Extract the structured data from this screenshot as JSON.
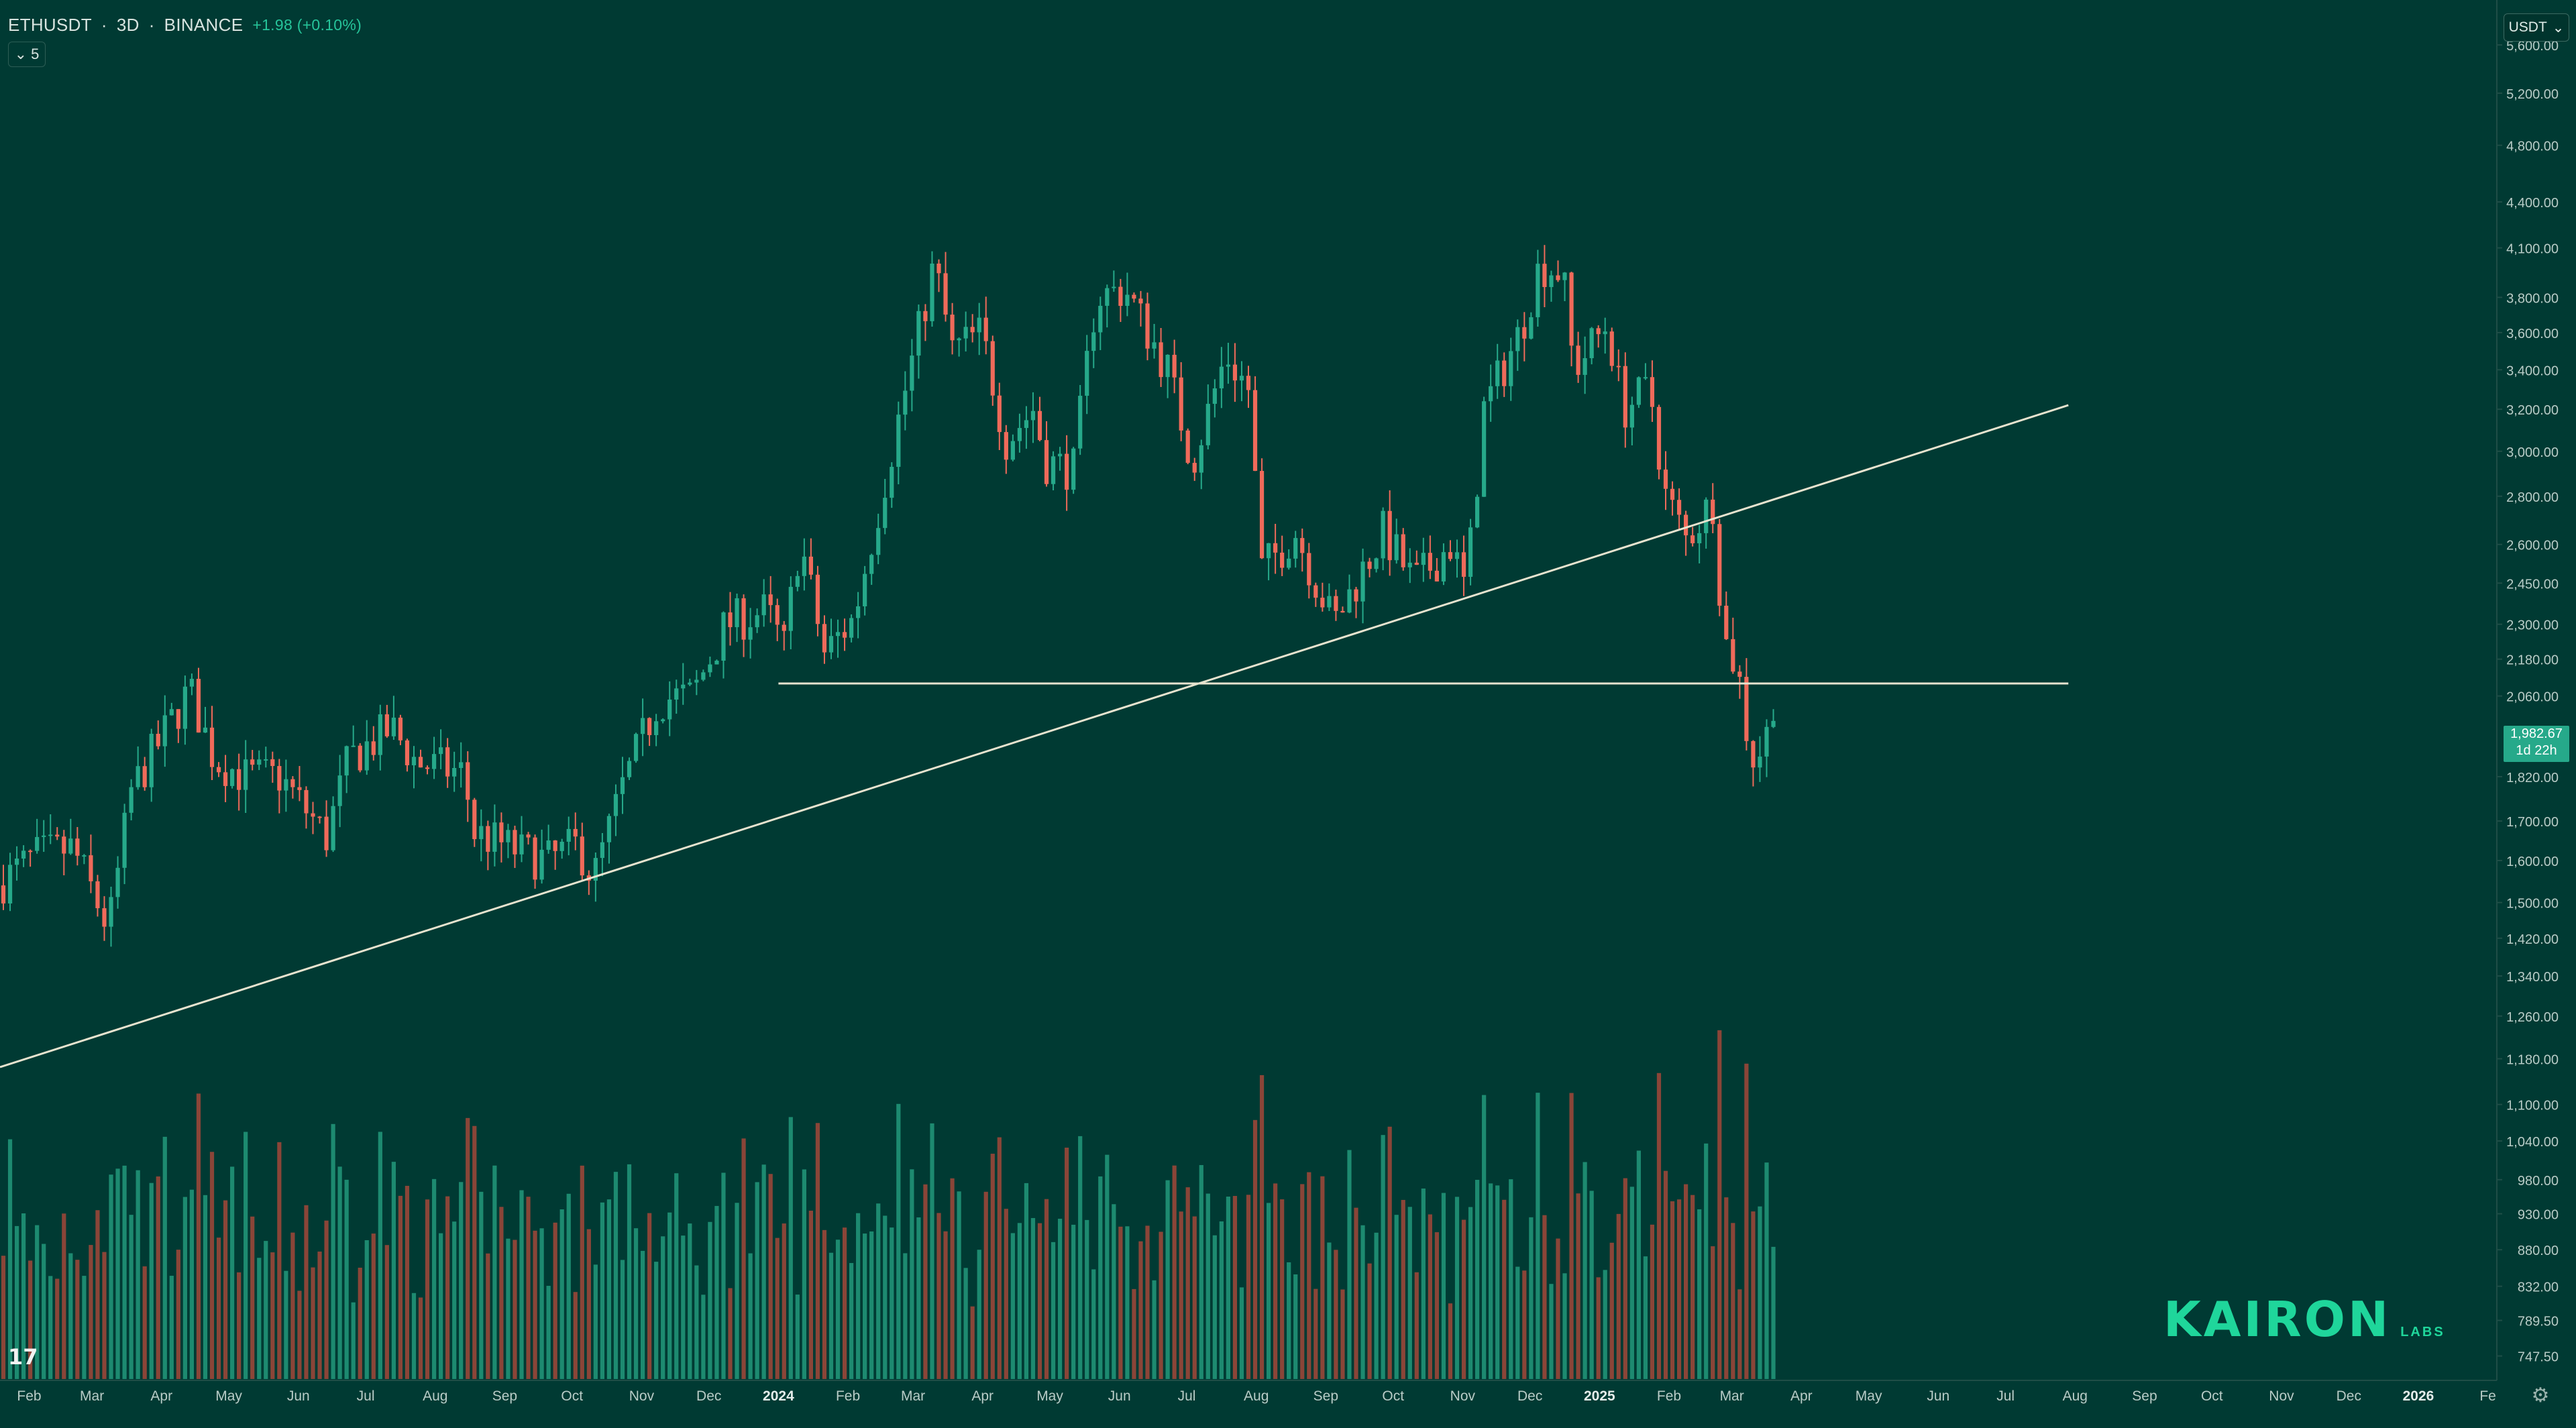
{
  "header": {
    "symbol": "ETHUSDT",
    "interval": "3D",
    "exchange": "BINANCE",
    "separator": "·",
    "change": "+1.98 (+0.10%)"
  },
  "indicator_chip": {
    "glyph": "⌄",
    "value": "5"
  },
  "currency_button": {
    "label": "USDT",
    "glyph": "⌄"
  },
  "last_price": {
    "price": "1,982.67",
    "countdown": "1d 22h"
  },
  "tv_logo": {
    "glyph": "17"
  },
  "brand": {
    "name": "KAIRON",
    "suffix": "LABS"
  },
  "settings_glyph": "⚙",
  "colors": {
    "background": "#003a33",
    "up": "#26a98a",
    "down": "#ef6a5a",
    "volume_up": "#1d8a70",
    "volume_down": "#8a4538",
    "drawing": "#e7e3cf",
    "brand": "#1fd69b"
  },
  "chart_data": {
    "type": "candlestick",
    "interval": "3D",
    "scale": "log",
    "y_ticks": [
      "5,600.00",
      "5,200.00",
      "4,800.00",
      "4,400.00",
      "4,100.00",
      "3,800.00",
      "3,600.00",
      "3,400.00",
      "3,200.00",
      "3,000.00",
      "2,800.00",
      "2,600.00",
      "2,450.00",
      "2,300.00",
      "2,180.00",
      "2,060.00",
      "1,820.00",
      "1,700.00",
      "1,600.00",
      "1,500.00",
      "1,420.00",
      "1,340.00",
      "1,260.00",
      "1,180.00",
      "1,100.00",
      "1,040.00",
      "980.00",
      "930.00",
      "880.00",
      "832.00",
      "789.50",
      "747.50"
    ],
    "y_tick_values": [
      5600,
      5200,
      4800,
      4400,
      4100,
      3800,
      3600,
      3400,
      3200,
      3000,
      2800,
      2600,
      2450,
      2300,
      2180,
      2060,
      1820,
      1700,
      1600,
      1500,
      1420,
      1340,
      1260,
      1180,
      1100,
      1040,
      980,
      930,
      880,
      832,
      789.5,
      747.5
    ],
    "ylim": [
      720,
      6000
    ],
    "x_ticks": [
      "Feb",
      "Mar",
      "Apr",
      "May",
      "Jun",
      "Jul",
      "Aug",
      "Sep",
      "Oct",
      "Nov",
      "Dec",
      "2024",
      "Feb",
      "Mar",
      "Apr",
      "May",
      "Jun",
      "Jul",
      "Aug",
      "Sep",
      "Oct",
      "Nov",
      "Dec",
      "2025",
      "Feb",
      "Mar",
      "Apr",
      "May",
      "Jun",
      "Jul",
      "Aug",
      "Sep",
      "Oct",
      "Nov",
      "Dec",
      "2026",
      "Fe"
    ],
    "x_tick_dates": [
      "2023-02-01",
      "2023-03-01",
      "2023-04-01",
      "2023-05-01",
      "2023-06-01",
      "2023-07-01",
      "2023-08-01",
      "2023-09-01",
      "2023-10-01",
      "2023-11-01",
      "2023-12-01",
      "2024-01-01",
      "2024-02-01",
      "2024-03-01",
      "2024-04-01",
      "2024-05-01",
      "2024-06-01",
      "2024-07-01",
      "2024-08-01",
      "2024-09-01",
      "2024-10-01",
      "2024-11-01",
      "2024-12-01",
      "2025-01-01",
      "2025-02-01",
      "2025-03-01",
      "2025-04-01",
      "2025-05-01",
      "2025-06-01",
      "2025-07-01",
      "2025-08-01",
      "2025-09-01",
      "2025-10-01",
      "2025-11-01",
      "2025-12-01",
      "2026-01-01",
      "2026-02-01"
    ],
    "xlim": [
      "2023-01-19",
      "2026-02-05"
    ],
    "price_anchors": [
      {
        "date": "2023-01-19",
        "price": 1540
      },
      {
        "date": "2023-02-05",
        "price": 1610
      },
      {
        "date": "2023-02-22",
        "price": 1630
      },
      {
        "date": "2023-03-10",
        "price": 1440
      },
      {
        "date": "2023-03-20",
        "price": 1780
      },
      {
        "date": "2023-04-15",
        "price": 2080
      },
      {
        "date": "2023-04-26",
        "price": 1870
      },
      {
        "date": "2023-05-10",
        "price": 1820
      },
      {
        "date": "2023-05-25",
        "price": 1820
      },
      {
        "date": "2023-06-15",
        "price": 1660
      },
      {
        "date": "2023-06-25",
        "price": 1870
      },
      {
        "date": "2023-07-14",
        "price": 1960
      },
      {
        "date": "2023-07-25",
        "price": 1860
      },
      {
        "date": "2023-08-15",
        "price": 1830
      },
      {
        "date": "2023-08-20",
        "price": 1670
      },
      {
        "date": "2023-09-10",
        "price": 1620
      },
      {
        "date": "2023-09-22",
        "price": 1600
      },
      {
        "date": "2023-10-05",
        "price": 1640
      },
      {
        "date": "2023-10-12",
        "price": 1555
      },
      {
        "date": "2023-10-25",
        "price": 1790
      },
      {
        "date": "2023-11-10",
        "price": 2050
      },
      {
        "date": "2023-11-25",
        "price": 2060
      },
      {
        "date": "2023-12-10",
        "price": 2300
      },
      {
        "date": "2023-12-28",
        "price": 2350
      },
      {
        "date": "2024-01-05",
        "price": 2220
      },
      {
        "date": "2024-01-12",
        "price": 2620
      },
      {
        "date": "2024-01-23",
        "price": 2200
      },
      {
        "date": "2024-02-05",
        "price": 2320
      },
      {
        "date": "2024-02-25",
        "price": 3150
      },
      {
        "date": "2024-03-12",
        "price": 4000
      },
      {
        "date": "2024-03-20",
        "price": 3500
      },
      {
        "date": "2024-04-02",
        "price": 3600
      },
      {
        "date": "2024-04-13",
        "price": 3050
      },
      {
        "date": "2024-04-25",
        "price": 3200
      },
      {
        "date": "2024-05-01",
        "price": 2950
      },
      {
        "date": "2024-05-13",
        "price": 2920
      },
      {
        "date": "2024-05-23",
        "price": 3800
      },
      {
        "date": "2024-06-05",
        "price": 3850
      },
      {
        "date": "2024-06-24",
        "price": 3400
      },
      {
        "date": "2024-07-05",
        "price": 2950
      },
      {
        "date": "2024-07-20",
        "price": 3480
      },
      {
        "date": "2024-07-30",
        "price": 3300
      },
      {
        "date": "2024-08-05",
        "price": 2500
      },
      {
        "date": "2024-08-20",
        "price": 2650
      },
      {
        "date": "2024-09-06",
        "price": 2300
      },
      {
        "date": "2024-09-28",
        "price": 2650
      },
      {
        "date": "2024-10-12",
        "price": 2450
      },
      {
        "date": "2024-10-28",
        "price": 2600
      },
      {
        "date": "2024-11-04",
        "price": 2420
      },
      {
        "date": "2024-11-12",
        "price": 3200
      },
      {
        "date": "2024-11-28",
        "price": 3600
      },
      {
        "date": "2024-12-07",
        "price": 4000
      },
      {
        "date": "2024-12-17",
        "price": 3950
      },
      {
        "date": "2024-12-22",
        "price": 3400
      },
      {
        "date": "2025-01-06",
        "price": 3650
      },
      {
        "date": "2025-01-13",
        "price": 3200
      },
      {
        "date": "2025-01-25",
        "price": 3300
      },
      {
        "date": "2025-02-01",
        "price": 2800
      },
      {
        "date": "2025-02-10",
        "price": 2620
      },
      {
        "date": "2025-02-22",
        "price": 2780
      },
      {
        "date": "2025-02-27",
        "price": 2250
      },
      {
        "date": "2025-03-05",
        "price": 2150
      },
      {
        "date": "2025-03-11",
        "price": 1870
      },
      {
        "date": "2025-03-16",
        "price": 1900
      },
      {
        "date": "2025-03-20",
        "price": 1982.67
      }
    ],
    "drawings": [
      {
        "type": "trendline",
        "points": [
          {
            "date": "2023-01-19",
            "price": 1165
          },
          {
            "date": "2025-07-29",
            "price": 3220
          }
        ]
      },
      {
        "type": "horizontal_segment",
        "price": 2100,
        "from": "2024-01-01",
        "to": "2025-07-29"
      }
    ]
  }
}
